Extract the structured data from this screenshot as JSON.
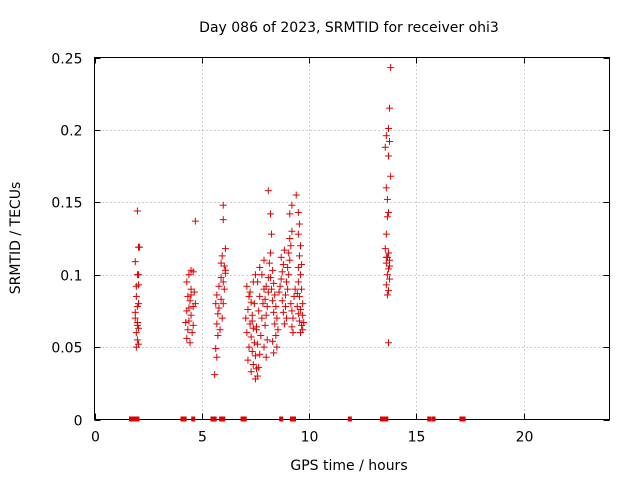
{
  "chart_data": {
    "type": "scatter",
    "title": "Day 086 of 2023, SRMTID for receiver ohi3",
    "xlabel": "GPS time / hours",
    "ylabel": "SRMTID / TECUs",
    "xlim": [
      0,
      24
    ],
    "ylim": [
      0,
      0.25
    ],
    "xticks": [
      0,
      5,
      10,
      15,
      20
    ],
    "xtick_labels": [
      "0",
      "5",
      "10",
      "15",
      "20"
    ],
    "yticks": [
      0,
      0.05,
      0.1,
      0.15,
      0.2,
      0.25
    ],
    "ytick_labels": [
      "0",
      "0.05",
      "0.1",
      "0.15",
      "0.2",
      "0.25"
    ],
    "grid": true,
    "marker": "+",
    "color": "#e00000",
    "zero_markers_x": [
      1.7,
      1.8,
      1.9,
      2.0,
      4.1,
      4.2,
      4.6,
      5.5,
      5.6,
      5.9,
      6.0,
      6.9,
      7.0,
      8.7,
      9.2,
      9.3,
      11.9,
      13.4,
      13.5,
      13.6,
      15.6,
      15.8,
      17.1,
      17.2
    ],
    "points": [
      [
        2.0,
        0.144
      ],
      [
        2.05,
        0.119
      ],
      [
        2.1,
        0.119
      ],
      [
        1.9,
        0.109
      ],
      [
        2.0,
        0.1
      ],
      [
        2.05,
        0.1
      ],
      [
        1.95,
        0.092
      ],
      [
        2.05,
        0.093
      ],
      [
        1.95,
        0.085
      ],
      [
        2.0,
        0.078
      ],
      [
        1.9,
        0.074
      ],
      [
        2.0,
        0.067
      ],
      [
        2.05,
        0.063
      ],
      [
        1.95,
        0.06
      ],
      [
        2.0,
        0.055
      ],
      [
        2.05,
        0.052
      ],
      [
        1.95,
        0.05
      ],
      [
        2.0,
        0.065
      ],
      [
        1.9,
        0.07
      ],
      [
        2.05,
        0.08
      ],
      [
        4.7,
        0.137
      ],
      [
        4.5,
        0.103
      ],
      [
        4.6,
        0.102
      ],
      [
        4.4,
        0.1
      ],
      [
        4.3,
        0.095
      ],
      [
        4.5,
        0.09
      ],
      [
        4.65,
        0.088
      ],
      [
        4.35,
        0.085
      ],
      [
        4.45,
        0.082
      ],
      [
        4.6,
        0.078
      ],
      [
        4.3,
        0.075
      ],
      [
        4.5,
        0.072
      ],
      [
        4.4,
        0.068
      ],
      [
        4.6,
        0.065
      ],
      [
        4.35,
        0.062
      ],
      [
        4.55,
        0.06
      ],
      [
        4.3,
        0.056
      ],
      [
        4.45,
        0.053
      ],
      [
        4.25,
        0.067
      ],
      [
        4.7,
        0.08
      ],
      [
        4.4,
        0.077
      ],
      [
        4.5,
        0.086
      ],
      [
        6.0,
        0.148
      ],
      [
        6.0,
        0.138
      ],
      [
        6.1,
        0.118
      ],
      [
        5.95,
        0.113
      ],
      [
        6.05,
        0.106
      ],
      [
        6.1,
        0.101
      ],
      [
        5.9,
        0.098
      ],
      [
        6.0,
        0.095
      ],
      [
        5.8,
        0.092
      ],
      [
        6.05,
        0.09
      ],
      [
        5.7,
        0.086
      ],
      [
        5.9,
        0.083
      ],
      [
        6.0,
        0.08
      ],
      [
        5.8,
        0.077
      ],
      [
        5.75,
        0.073
      ],
      [
        5.95,
        0.07
      ],
      [
        5.7,
        0.066
      ],
      [
        5.85,
        0.062
      ],
      [
        5.75,
        0.058
      ],
      [
        5.65,
        0.049
      ],
      [
        5.7,
        0.043
      ],
      [
        5.6,
        0.031
      ],
      [
        6.1,
        0.103
      ],
      [
        5.9,
        0.108
      ],
      [
        5.65,
        0.08
      ],
      [
        7.1,
        0.092
      ],
      [
        7.2,
        0.085
      ],
      [
        7.3,
        0.081
      ],
      [
        7.15,
        0.076
      ],
      [
        7.35,
        0.072
      ],
      [
        7.05,
        0.07
      ],
      [
        7.25,
        0.066
      ],
      [
        7.4,
        0.063
      ],
      [
        7.1,
        0.06
      ],
      [
        7.3,
        0.057
      ],
      [
        7.45,
        0.053
      ],
      [
        7.2,
        0.05
      ],
      [
        7.35,
        0.047
      ],
      [
        7.5,
        0.044
      ],
      [
        7.15,
        0.041
      ],
      [
        7.4,
        0.038
      ],
      [
        7.55,
        0.035
      ],
      [
        7.3,
        0.033
      ],
      [
        7.6,
        0.03
      ],
      [
        7.5,
        0.028
      ],
      [
        7.65,
        0.036
      ],
      [
        7.7,
        0.045
      ],
      [
        7.6,
        0.052
      ],
      [
        7.75,
        0.058
      ],
      [
        7.55,
        0.064
      ],
      [
        7.8,
        0.07
      ],
      [
        7.65,
        0.075
      ],
      [
        7.85,
        0.08
      ],
      [
        7.7,
        0.085
      ],
      [
        7.9,
        0.09
      ],
      [
        7.6,
        0.095
      ],
      [
        7.8,
        0.1
      ],
      [
        7.7,
        0.105
      ],
      [
        7.9,
        0.11
      ],
      [
        7.5,
        0.1
      ],
      [
        7.4,
        0.095
      ],
      [
        7.25,
        0.088
      ],
      [
        7.45,
        0.08
      ],
      [
        7.35,
        0.068
      ],
      [
        7.55,
        0.062
      ],
      [
        7.95,
        0.065
      ],
      [
        8.0,
        0.072
      ],
      [
        8.05,
        0.078
      ],
      [
        7.95,
        0.083
      ],
      [
        8.1,
        0.088
      ],
      [
        8.0,
        0.092
      ],
      [
        8.1,
        0.098
      ],
      [
        7.9,
        0.05
      ],
      [
        8.0,
        0.043
      ],
      [
        8.05,
        0.055
      ],
      [
        8.1,
        0.158
      ],
      [
        8.2,
        0.142
      ],
      [
        8.25,
        0.128
      ],
      [
        8.2,
        0.115
      ],
      [
        8.15,
        0.108
      ],
      [
        8.3,
        0.103
      ],
      [
        8.2,
        0.098
      ],
      [
        8.35,
        0.094
      ],
      [
        8.25,
        0.09
      ],
      [
        8.4,
        0.086
      ],
      [
        8.3,
        0.082
      ],
      [
        8.45,
        0.078
      ],
      [
        8.35,
        0.074
      ],
      [
        8.5,
        0.07
      ],
      [
        8.4,
        0.066
      ],
      [
        8.55,
        0.062
      ],
      [
        8.45,
        0.058
      ],
      [
        8.3,
        0.054
      ],
      [
        8.5,
        0.05
      ],
      [
        8.35,
        0.046
      ],
      [
        8.6,
        0.088
      ],
      [
        8.65,
        0.092
      ],
      [
        8.7,
        0.097
      ],
      [
        8.75,
        0.102
      ],
      [
        8.8,
        0.107
      ],
      [
        8.7,
        0.112
      ],
      [
        8.85,
        0.117
      ],
      [
        8.75,
        0.082
      ],
      [
        8.9,
        0.078
      ],
      [
        8.8,
        0.074
      ],
      [
        8.95,
        0.07
      ],
      [
        8.85,
        0.066
      ],
      [
        8.9,
        0.086
      ],
      [
        9.0,
        0.09
      ],
      [
        8.95,
        0.095
      ],
      [
        9.05,
        0.1
      ],
      [
        9.0,
        0.105
      ],
      [
        9.1,
        0.11
      ],
      [
        9.05,
        0.115
      ],
      [
        9.15,
        0.12
      ],
      [
        9.1,
        0.125
      ],
      [
        9.2,
        0.13
      ],
      [
        9.1,
        0.142
      ],
      [
        9.2,
        0.148
      ],
      [
        9.15,
        0.08
      ],
      [
        9.2,
        0.075
      ],
      [
        9.25,
        0.07
      ],
      [
        9.2,
        0.064
      ],
      [
        9.3,
        0.085
      ],
      [
        9.25,
        0.06
      ],
      [
        9.4,
        0.155
      ],
      [
        9.5,
        0.143
      ],
      [
        9.55,
        0.135
      ],
      [
        9.5,
        0.128
      ],
      [
        9.6,
        0.12
      ],
      [
        9.55,
        0.113
      ],
      [
        9.65,
        0.107
      ],
      [
        9.6,
        0.1
      ],
      [
        9.5,
        0.095
      ],
      [
        9.65,
        0.09
      ],
      [
        9.55,
        0.085
      ],
      [
        9.7,
        0.08
      ],
      [
        9.6,
        0.076
      ],
      [
        9.7,
        0.072
      ],
      [
        9.55,
        0.068
      ],
      [
        9.65,
        0.065
      ],
      [
        9.7,
        0.062
      ],
      [
        9.6,
        0.06
      ],
      [
        9.75,
        0.067
      ],
      [
        9.45,
        0.087
      ],
      [
        9.5,
        0.105
      ],
      [
        9.35,
        0.09
      ],
      [
        9.45,
        0.078
      ],
      [
        9.5,
        0.073
      ],
      [
        13.8,
        0.243
      ],
      [
        13.75,
        0.215
      ],
      [
        13.7,
        0.201
      ],
      [
        13.6,
        0.196
      ],
      [
        13.75,
        0.192
      ],
      [
        13.55,
        0.188
      ],
      [
        13.7,
        0.182
      ],
      [
        13.8,
        0.168
      ],
      [
        13.6,
        0.16
      ],
      [
        13.65,
        0.152
      ],
      [
        13.7,
        0.143
      ],
      [
        13.65,
        0.14
      ],
      [
        13.6,
        0.128
      ],
      [
        13.55,
        0.118
      ],
      [
        13.7,
        0.115
      ],
      [
        13.65,
        0.112
      ],
      [
        13.75,
        0.11
      ],
      [
        13.6,
        0.108
      ],
      [
        13.7,
        0.104
      ],
      [
        13.65,
        0.1
      ],
      [
        13.75,
        0.097
      ],
      [
        13.6,
        0.093
      ],
      [
        13.7,
        0.089
      ],
      [
        13.65,
        0.086
      ],
      [
        13.7,
        0.053
      ],
      [
        13.6,
        0.112
      ],
      [
        13.75,
        0.106
      ]
    ]
  }
}
